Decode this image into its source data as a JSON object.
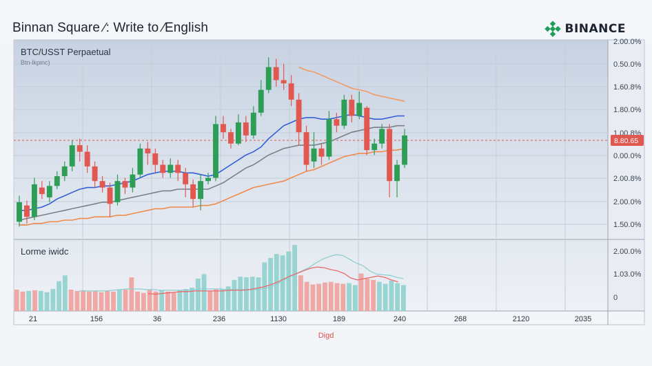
{
  "header": {
    "title": "Binnan Square ∕: Write to ∕English",
    "brand": "BINANCE",
    "brand_color": "#e8b20a",
    "brand_icon": "binance-diamond-icon"
  },
  "main_panel": {
    "pair": "BTC/USST Perpaetual",
    "subtitle": "Btn-lkpinc)"
  },
  "volume_panel": {
    "label": "Lorme iwidc"
  },
  "footer": {
    "label": "Digd"
  },
  "chart_data": [
    {
      "type": "candlestick",
      "title": "BTC/USST Perpaetual",
      "subtitle": "Btn-lkpinc)",
      "y_ticks": [
        "1.50.0%",
        "2.00.0%",
        "2.00.8%",
        "0.00.0%",
        "1.00.8%",
        "1.80.0%",
        "1.60.8%",
        "0.50.0%",
        "2.00.0%"
      ],
      "y_ticks_display_note": "",
      "price_tag": "8.80.65",
      "price_tag_color": "#e0584f",
      "current_level": 0.65,
      "grid": true,
      "x_ticks": [
        "21",
        "156",
        "36",
        "236",
        "1130",
        "189",
        "240",
        "268",
        "2120",
        "2035"
      ],
      "x_label": "Digd",
      "up_color": "#2e9e57",
      "down_color": "#e0584f",
      "candles": [
        [
          0.15,
          0.27,
          0.31,
          0.12
        ],
        [
          0.25,
          0.18,
          0.28,
          0.14
        ],
        [
          0.18,
          0.38,
          0.42,
          0.16
        ],
        [
          0.36,
          0.32,
          0.4,
          0.29
        ],
        [
          0.3,
          0.37,
          0.4,
          0.27
        ],
        [
          0.37,
          0.43,
          0.46,
          0.35
        ],
        [
          0.43,
          0.49,
          0.52,
          0.4
        ],
        [
          0.49,
          0.62,
          0.65,
          0.46
        ],
        [
          0.62,
          0.58,
          0.66,
          0.52
        ],
        [
          0.58,
          0.49,
          0.62,
          0.45
        ],
        [
          0.49,
          0.4,
          0.52,
          0.36
        ],
        [
          0.4,
          0.36,
          0.43,
          0.33
        ],
        [
          0.36,
          0.26,
          0.39,
          0.18
        ],
        [
          0.27,
          0.4,
          0.44,
          0.25
        ],
        [
          0.4,
          0.36,
          0.42,
          0.32
        ],
        [
          0.36,
          0.44,
          0.48,
          0.33
        ],
        [
          0.44,
          0.6,
          0.63,
          0.42
        ],
        [
          0.6,
          0.57,
          0.64,
          0.5
        ],
        [
          0.57,
          0.5,
          0.6,
          0.45
        ],
        [
          0.5,
          0.45,
          0.53,
          0.42
        ],
        [
          0.45,
          0.5,
          0.54,
          0.42
        ],
        [
          0.5,
          0.45,
          0.53,
          0.4
        ],
        [
          0.45,
          0.38,
          0.48,
          0.3
        ],
        [
          0.38,
          0.29,
          0.41,
          0.24
        ],
        [
          0.29,
          0.4,
          0.44,
          0.22
        ],
        [
          0.4,
          0.42,
          0.45,
          0.38
        ],
        [
          0.42,
          0.75,
          0.8,
          0.4
        ],
        [
          0.75,
          0.7,
          0.8,
          0.66
        ],
        [
          0.7,
          0.63,
          0.72,
          0.6
        ],
        [
          0.63,
          0.76,
          0.81,
          0.62
        ],
        [
          0.76,
          0.68,
          0.8,
          0.64
        ],
        [
          0.68,
          0.82,
          0.86,
          0.66
        ],
        [
          0.82,
          0.96,
          1.02,
          0.8
        ],
        [
          0.96,
          1.1,
          1.16,
          0.94
        ],
        [
          1.1,
          1.02,
          1.15,
          0.98
        ],
        [
          1.02,
          1.0,
          1.12,
          0.96
        ],
        [
          1.0,
          0.9,
          1.05,
          0.86
        ],
        [
          0.9,
          0.7,
          0.94,
          0.62
        ],
        [
          0.7,
          0.5,
          0.74,
          0.46
        ],
        [
          0.52,
          0.6,
          0.7,
          0.48
        ],
        [
          0.6,
          0.55,
          0.63,
          0.5
        ],
        [
          0.55,
          0.78,
          0.83,
          0.53
        ],
        [
          0.78,
          0.74,
          0.82,
          0.7
        ],
        [
          0.74,
          0.9,
          0.93,
          0.72
        ],
        [
          0.9,
          0.8,
          0.93,
          0.76
        ],
        [
          0.8,
          0.88,
          0.95,
          0.78
        ],
        [
          0.85,
          0.59,
          0.86,
          0.56
        ],
        [
          0.59,
          0.63,
          0.66,
          0.56
        ],
        [
          0.63,
          0.72,
          0.75,
          0.6
        ],
        [
          0.72,
          0.4,
          0.75,
          0.3
        ],
        [
          0.4,
          0.5,
          0.53,
          0.3
        ],
        [
          0.5,
          0.68,
          0.72,
          0.48
        ]
      ],
      "ma_blue": [
        0.22,
        0.22,
        0.23,
        0.24,
        0.26,
        0.29,
        0.31,
        0.33,
        0.35,
        0.36,
        0.36,
        0.37,
        0.37,
        0.38,
        0.39,
        0.4,
        0.42,
        0.44,
        0.45,
        0.46,
        0.46,
        0.46,
        0.45,
        0.45,
        0.44,
        0.43,
        0.44,
        0.47,
        0.5,
        0.53,
        0.56,
        0.58,
        0.61,
        0.66,
        0.7,
        0.74,
        0.76,
        0.78,
        0.79,
        0.79,
        0.78,
        0.78,
        0.79,
        0.8,
        0.81,
        0.8,
        0.79,
        0.78,
        0.78,
        0.79,
        0.8,
        0.8
      ],
      "ma_gray": [
        0.16,
        0.17,
        0.18,
        0.19,
        0.2,
        0.21,
        0.22,
        0.23,
        0.24,
        0.25,
        0.26,
        0.27,
        0.27,
        0.28,
        0.29,
        0.3,
        0.31,
        0.32,
        0.33,
        0.34,
        0.34,
        0.35,
        0.35,
        0.35,
        0.35,
        0.35,
        0.37,
        0.39,
        0.42,
        0.45,
        0.48,
        0.5,
        0.53,
        0.56,
        0.58,
        0.6,
        0.61,
        0.62,
        0.62,
        0.62,
        0.63,
        0.64,
        0.66,
        0.68,
        0.7,
        0.71,
        0.72,
        0.73,
        0.73,
        0.73,
        0.74,
        0.74
      ],
      "ma_orange": [
        0.13,
        0.13,
        0.14,
        0.14,
        0.15,
        0.15,
        0.16,
        0.16,
        0.17,
        0.17,
        0.18,
        0.18,
        0.18,
        0.19,
        0.19,
        0.2,
        0.21,
        0.22,
        0.23,
        0.23,
        0.24,
        0.24,
        0.24,
        0.24,
        0.25,
        0.25,
        0.26,
        0.28,
        0.3,
        0.32,
        0.34,
        0.36,
        0.37,
        0.38,
        0.39,
        0.4,
        0.42,
        0.44,
        0.46,
        0.47,
        0.49,
        0.51,
        0.53,
        0.55,
        0.56,
        0.57,
        0.57,
        0.58,
        0.58,
        0.59,
        0.59,
        0.6
      ],
      "ma_peach": [
        1.1,
        1.08,
        1.07,
        1.05,
        1.03,
        1.01,
        0.99,
        0.97,
        0.96,
        0.95,
        0.93,
        0.92,
        0.91,
        0.9,
        0.89
      ],
      "ma_colors": {
        "blue": "#2f5fd6",
        "gray": "#7a7f88",
        "orange": "#f08a4b",
        "peach": "#f29a62"
      }
    },
    {
      "type": "bar",
      "title": "Lorme iwidc",
      "y_ticks": [
        "0",
        "1.03.0%",
        "2.00.0%"
      ],
      "up_color": "#8fd0cd",
      "down_color": "#f0a09c",
      "values": [
        0.33,
        0.3,
        0.31,
        0.32,
        0.31,
        0.29,
        0.34,
        0.46,
        0.55,
        0.33,
        0.31,
        0.32,
        0.3,
        0.31,
        0.29,
        0.31,
        0.3,
        0.33,
        0.33,
        0.52,
        0.3,
        0.28,
        0.33,
        0.3,
        0.32,
        0.3,
        0.28,
        0.32,
        0.34,
        0.36,
        0.5,
        0.57,
        0.31,
        0.34,
        0.34,
        0.38,
        0.48,
        0.53,
        0.52,
        0.53,
        0.52,
        0.75,
        0.82,
        0.88,
        0.86,
        0.92,
        1.02,
        0.55,
        0.45,
        0.41,
        0.42,
        0.44,
        0.45,
        0.43,
        0.42,
        0.43,
        0.4,
        0.58,
        0.5,
        0.48,
        0.45,
        0.42,
        0.47,
        0.43,
        0.4
      ],
      "up_flags": [
        0,
        0,
        1,
        0,
        1,
        1,
        1,
        1,
        1,
        0,
        0,
        0,
        0,
        0,
        0,
        0,
        0,
        1,
        0,
        0,
        0,
        0,
        0,
        0,
        1,
        0,
        0,
        1,
        1,
        1,
        1,
        1,
        0,
        0,
        1,
        1,
        1,
        1,
        1,
        1,
        1,
        1,
        1,
        1,
        1,
        1,
        1,
        0,
        0,
        0,
        0,
        0,
        0,
        0,
        0,
        1,
        1,
        0,
        0,
        0,
        1,
        1,
        1,
        1,
        1
      ],
      "trend1": [
        0.31,
        0.31,
        0.31,
        0.31,
        0.31,
        0.32,
        0.33,
        0.34,
        0.34,
        0.34,
        0.33,
        0.33,
        0.32,
        0.32,
        0.32,
        0.32,
        0.32,
        0.33,
        0.34,
        0.34,
        0.34,
        0.34,
        0.33,
        0.33,
        0.33,
        0.33,
        0.33,
        0.34,
        0.36,
        0.4,
        0.46,
        0.52,
        0.57,
        0.62,
        0.67,
        0.74,
        0.8,
        0.84,
        0.87,
        0.86,
        0.8,
        0.74,
        0.7,
        0.62,
        0.57,
        0.56,
        0.55,
        0.52,
        0.5
      ],
      "trend2": [
        0.27,
        0.26,
        0.27,
        0.28,
        0.29,
        0.3,
        0.3,
        0.31,
        0.31,
        0.31,
        0.31,
        0.31,
        0.32,
        0.32,
        0.32,
        0.33,
        0.35,
        0.37,
        0.4,
        0.44,
        0.49,
        0.54,
        0.58,
        0.62,
        0.66,
        0.68,
        0.67,
        0.64,
        0.62,
        0.58,
        0.51,
        0.48,
        0.5,
        0.52,
        0.54,
        0.52,
        0.48,
        0.45
      ],
      "trend_colors": {
        "teal": "#8ccfd0",
        "gray": "#b8bcc4",
        "red": "#e86a6a"
      }
    }
  ]
}
